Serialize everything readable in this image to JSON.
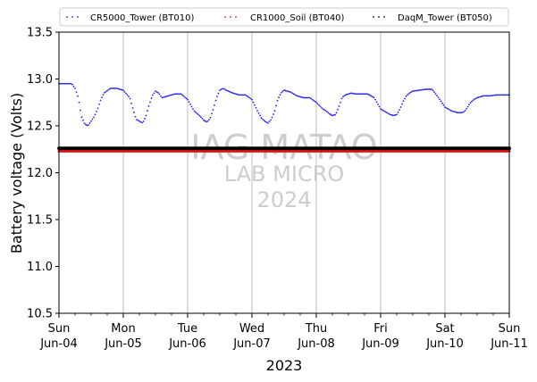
{
  "chart_data": {
    "type": "scatter",
    "xlabel": "2023",
    "ylabel": "Battery voltage (Volts)",
    "ylim": [
      10.5,
      13.5
    ],
    "xlim": [
      "2023-06-04",
      "2023-06-11"
    ],
    "y_ticks": [
      "10.5",
      "11.0",
      "11.5",
      "12.0",
      "12.5",
      "13.0",
      "13.5"
    ],
    "x_ticks": [
      {
        "day": "Sun",
        "date": "Jun-04"
      },
      {
        "day": "Mon",
        "date": "Jun-05"
      },
      {
        "day": "Tue",
        "date": "Jun-06"
      },
      {
        "day": "Wed",
        "date": "Jun-07"
      },
      {
        "day": "Thu",
        "date": "Jun-08"
      },
      {
        "day": "Fri",
        "date": "Jun-09"
      },
      {
        "day": "Sat",
        "date": "Jun-10"
      },
      {
        "day": "Sun",
        "date": "Jun-11"
      }
    ],
    "grid": "vertical at major ticks",
    "legend_position": "top",
    "series": [
      {
        "name": "CR5000_Tower (BT010)",
        "color": "#2222dd",
        "x_days": [
          0.0,
          0.1,
          0.2,
          0.25,
          0.3,
          0.35,
          0.4,
          0.45,
          0.5,
          0.55,
          0.6,
          0.65,
          0.7,
          0.8,
          0.9,
          1.0,
          1.1,
          1.15,
          1.2,
          1.25,
          1.3,
          1.35,
          1.4,
          1.45,
          1.5,
          1.55,
          1.6,
          1.7,
          1.8,
          1.9,
          2.0,
          2.1,
          2.2,
          2.25,
          2.3,
          2.35,
          2.4,
          2.45,
          2.5,
          2.55,
          2.6,
          2.7,
          2.8,
          2.9,
          3.0,
          3.1,
          3.15,
          3.2,
          3.25,
          3.3,
          3.35,
          3.4,
          3.45,
          3.5,
          3.6,
          3.7,
          3.8,
          3.9,
          4.0,
          4.1,
          4.15,
          4.2,
          4.25,
          4.3,
          4.35,
          4.4,
          4.45,
          4.5,
          4.55,
          4.6,
          4.7,
          4.8,
          4.9,
          5.0,
          5.1,
          5.15,
          5.2,
          5.25,
          5.3,
          5.35,
          5.4,
          5.45,
          5.5,
          5.6,
          5.7,
          5.8,
          5.9,
          6.0,
          6.1,
          6.2,
          6.25,
          6.3,
          6.35,
          6.4,
          6.45,
          6.5,
          6.6,
          6.7,
          6.8,
          6.9,
          7.0
        ],
        "values": [
          12.95,
          12.95,
          12.95,
          12.9,
          12.8,
          12.6,
          12.52,
          12.5,
          12.55,
          12.6,
          12.68,
          12.78,
          12.85,
          12.9,
          12.9,
          12.88,
          12.8,
          12.68,
          12.57,
          12.55,
          12.53,
          12.6,
          12.72,
          12.82,
          12.87,
          12.85,
          12.8,
          12.82,
          12.84,
          12.84,
          12.78,
          12.66,
          12.6,
          12.56,
          12.54,
          12.58,
          12.68,
          12.8,
          12.88,
          12.9,
          12.88,
          12.85,
          12.83,
          12.83,
          12.78,
          12.64,
          12.58,
          12.55,
          12.53,
          12.57,
          12.65,
          12.78,
          12.85,
          12.88,
          12.86,
          12.82,
          12.8,
          12.8,
          12.75,
          12.68,
          12.66,
          12.63,
          12.61,
          12.62,
          12.7,
          12.8,
          12.83,
          12.84,
          12.85,
          12.84,
          12.84,
          12.84,
          12.8,
          12.68,
          12.64,
          12.62,
          12.61,
          12.62,
          12.68,
          12.76,
          12.82,
          12.85,
          12.87,
          12.88,
          12.89,
          12.89,
          12.8,
          12.7,
          12.66,
          12.64,
          12.64,
          12.65,
          12.7,
          12.75,
          12.78,
          12.8,
          12.82,
          12.82,
          12.83,
          12.83,
          12.83
        ]
      },
      {
        "name": "CR1000_Soil (BT040)",
        "color": "#dd1111",
        "constant": 12.23,
        "x_range_days": [
          0,
          7
        ]
      },
      {
        "name": "DaqM_Tower (BT050)",
        "color": "#000000",
        "constant": 12.26,
        "x_range_days": [
          0,
          7
        ]
      }
    ],
    "watermark": [
      "IAG MATAO",
      "LAB MICRO",
      "2024"
    ]
  }
}
